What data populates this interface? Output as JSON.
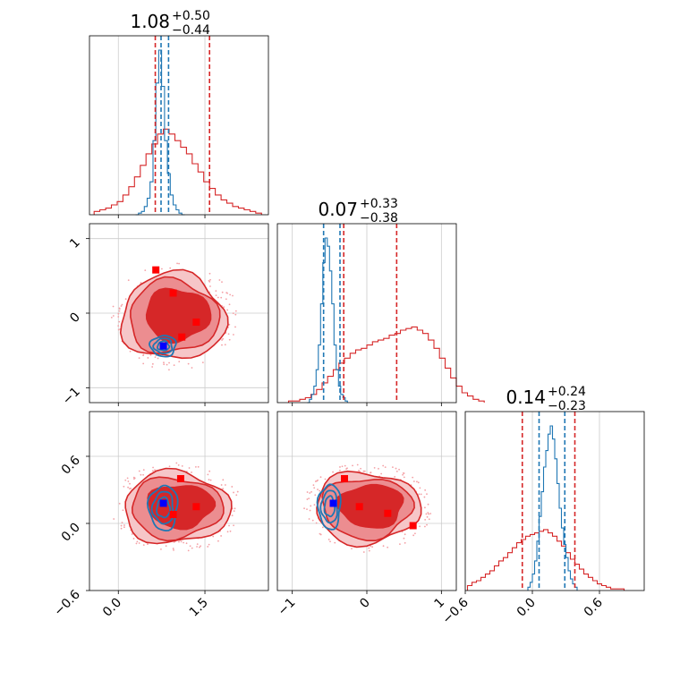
{
  "chart_data": {
    "type": "scatter",
    "colors": {
      "red": "#d62728",
      "blue": "#1f77b4",
      "marker_red": "#ff0000",
      "marker_blue": "#0000ff",
      "grid": "#cccccc"
    },
    "diag": [
      {
        "title_main": "1.08",
        "title_sup": "+0.50",
        "title_sub": "−0.44",
        "xlim": [
          -0.5,
          2.6
        ],
        "red_lines": [
          0.64,
          1.58
        ],
        "blue_lines": [
          0.74,
          0.87
        ],
        "red_hist": {
          "x0": -0.42,
          "dx": 0.1,
          "h": [
            0.02,
            0.03,
            0.04,
            0.06,
            0.08,
            0.12,
            0.17,
            0.23,
            0.3,
            0.37,
            0.43,
            0.49,
            0.52,
            0.49,
            0.45,
            0.41,
            0.37,
            0.31,
            0.26,
            0.2,
            0.16,
            0.12,
            0.09,
            0.07,
            0.05,
            0.04,
            0.03,
            0.02,
            0.01
          ]
        },
        "blue_hist": {
          "x0": 0.3,
          "dx": 0.05,
          "h": [
            0.0,
            0.01,
            0.02,
            0.05,
            0.1,
            0.2,
            0.45,
            0.8,
            1.0,
            0.78,
            0.45,
            0.25,
            0.12,
            0.06,
            0.03,
            0.01,
            0.0
          ]
        }
      },
      {
        "title_main": "0.07",
        "title_sup": "+0.33",
        "title_sub": "−0.38",
        "xlim": [
          -1.2,
          1.2
        ],
        "red_lines": [
          -0.31,
          0.4
        ],
        "blue_lines": [
          -0.58,
          -0.36
        ],
        "red_hist": {
          "x0": -1.05,
          "dx": 0.075,
          "h": [
            0.01,
            0.01,
            0.02,
            0.03,
            0.05,
            0.08,
            0.12,
            0.16,
            0.2,
            0.24,
            0.27,
            0.3,
            0.32,
            0.33,
            0.35,
            0.37,
            0.38,
            0.39,
            0.41,
            0.42,
            0.44,
            0.45,
            0.46,
            0.44,
            0.42,
            0.38,
            0.33,
            0.27,
            0.21,
            0.15,
            0.1,
            0.06,
            0.04,
            0.02,
            0.01
          ]
        },
        "blue_hist": {
          "x0": -0.8,
          "dx": 0.03,
          "h": [
            0.0,
            0.02,
            0.05,
            0.1,
            0.2,
            0.35,
            0.6,
            0.85,
            1.0,
            0.95,
            0.8,
            0.6,
            0.35,
            0.2,
            0.1,
            0.05,
            0.03,
            0.01
          ]
        }
      },
      {
        "title_main": "0.14",
        "title_sup": "+0.24",
        "title_sub": "−0.23",
        "xlim": [
          -0.6,
          1.0
        ],
        "red_lines": [
          -0.09,
          0.38
        ],
        "blue_lines": [
          0.06,
          0.29
        ],
        "red_hist": {
          "x0": -0.58,
          "dx": 0.04,
          "h": [
            0.03,
            0.05,
            0.06,
            0.08,
            0.1,
            0.12,
            0.15,
            0.18,
            0.2,
            0.23,
            0.26,
            0.29,
            0.31,
            0.33,
            0.34,
            0.35,
            0.36,
            0.37,
            0.35,
            0.33,
            0.3,
            0.27,
            0.23,
            0.19,
            0.16,
            0.13,
            0.1,
            0.08,
            0.06,
            0.04,
            0.03,
            0.02,
            0.01,
            0.01,
            0.01
          ]
        },
        "blue_hist": {
          "x0": -0.04,
          "dx": 0.02,
          "h": [
            0.02,
            0.05,
            0.1,
            0.18,
            0.3,
            0.45,
            0.6,
            0.75,
            0.85,
            0.95,
            1.0,
            0.92,
            0.8,
            0.65,
            0.5,
            0.38,
            0.28,
            0.2,
            0.12,
            0.07,
            0.04,
            0.02
          ]
        }
      }
    ],
    "panels": [
      {
        "id": "p10",
        "xlim": [
          -0.5,
          2.6
        ],
        "ylim": [
          -1.2,
          1.2
        ],
        "red_markers": [
          [
            0.65,
            0.58
          ],
          [
            0.95,
            0.27
          ],
          [
            1.35,
            -0.12
          ],
          [
            1.1,
            -0.32
          ]
        ],
        "blue_marker": [
          0.78,
          -0.44
        ],
        "red_center": [
          0.95,
          -0.05
        ],
        "red_r": [
          0.9,
          0.58
        ],
        "blue_center": [
          0.78,
          -0.44
        ],
        "blue_r": [
          0.22,
          0.14
        ]
      },
      {
        "id": "p20",
        "xlim": [
          -0.5,
          2.6
        ],
        "ylim": [
          -0.6,
          1.0
        ],
        "red_markers": [
          [
            1.08,
            0.4
          ],
          [
            0.95,
            0.08
          ],
          [
            1.35,
            0.15
          ]
        ],
        "blue_marker": [
          0.78,
          0.18
        ],
        "red_center": [
          1.0,
          0.14
        ],
        "red_r": [
          0.92,
          0.32
        ],
        "blue_center": [
          0.78,
          0.14
        ],
        "blue_r": [
          0.25,
          0.2
        ]
      },
      {
        "id": "p21",
        "xlim": [
          -1.2,
          1.2
        ],
        "ylim": [
          -0.6,
          1.0
        ],
        "red_markers": [
          [
            -0.3,
            0.4
          ],
          [
            -0.1,
            0.15
          ],
          [
            0.28,
            0.09
          ],
          [
            0.62,
            -0.02
          ]
        ],
        "blue_marker": [
          -0.45,
          0.18
        ],
        "red_center": [
          0.0,
          0.14
        ],
        "red_r": [
          0.7,
          0.32
        ],
        "blue_center": [
          -0.5,
          0.15
        ],
        "blue_r": [
          0.15,
          0.2
        ]
      }
    ],
    "axis_ticks": {
      "x0": {
        "values": [
          0.0,
          1.5
        ],
        "labels": [
          "0.0",
          "1.5"
        ]
      },
      "x1": {
        "values": [
          -1,
          0,
          1
        ],
        "labels": [
          "−1",
          "0",
          "1"
        ]
      },
      "x2": {
        "values": [
          -0.6,
          0.0,
          0.6
        ],
        "labels": [
          "−0.6",
          "0.0",
          "0.6"
        ]
      },
      "y1": {
        "values": [
          1,
          0,
          -1
        ],
        "labels": [
          "1",
          "0",
          "−1"
        ]
      },
      "y2": {
        "values": [
          0.6,
          0.0,
          -0.6
        ],
        "labels": [
          "0.6",
          "0.0",
          "−0.6"
        ]
      }
    }
  }
}
